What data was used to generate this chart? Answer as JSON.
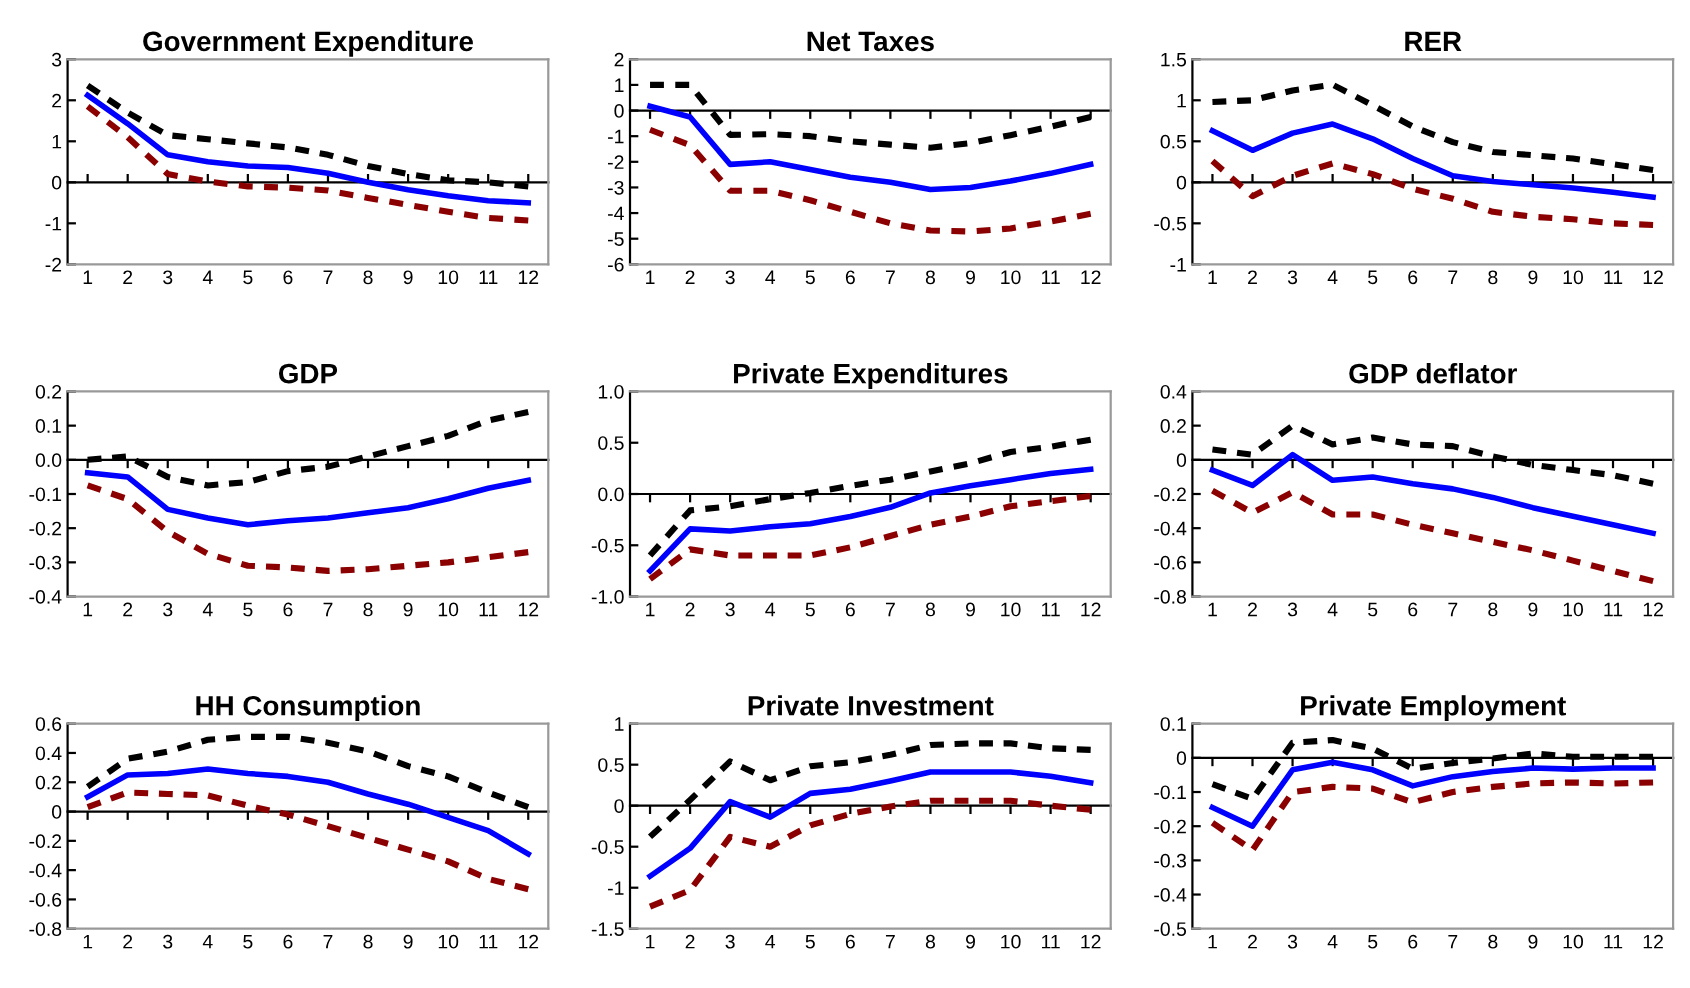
{
  "chart_data": [
    {
      "type": "line",
      "title": "Government Expenditure",
      "categories": [
        "1",
        "2",
        "3",
        "4",
        "5",
        "6",
        "7",
        "8",
        "9",
        "10",
        "11",
        "12"
      ],
      "ylim": [
        -2,
        3
      ],
      "yticks": [
        -2,
        -1,
        0,
        1,
        2,
        3
      ],
      "legend": false,
      "marker": "none",
      "series": [
        {
          "color": "#000000",
          "line_style": "dashed",
          "values": [
            2.36,
            1.7,
            1.15,
            1.05,
            0.95,
            0.85,
            0.67,
            0.4,
            0.2,
            0.05,
            0,
            -0.1
          ]
        },
        {
          "color": "#0000ff",
          "line_style": "solid",
          "values": [
            2.12,
            1.43,
            0.67,
            0.5,
            0.4,
            0.36,
            0.22,
            0,
            -0.18,
            -0.33,
            -0.45,
            -0.5
          ]
        },
        {
          "color": "#8b0000",
          "line_style": "dashed",
          "values": [
            1.85,
            1.1,
            0.2,
            0.02,
            -0.1,
            -0.13,
            -0.2,
            -0.38,
            -0.55,
            -0.72,
            -0.87,
            -0.93
          ]
        }
      ]
    },
    {
      "type": "line",
      "title": "Net Taxes",
      "categories": [
        "1",
        "2",
        "3",
        "4",
        "5",
        "6",
        "7",
        "8",
        "9",
        "10",
        "11",
        "12"
      ],
      "ylim": [
        -6,
        2
      ],
      "yticks": [
        -6,
        -5,
        -4,
        -3,
        -2,
        -1,
        0,
        1,
        2
      ],
      "legend": false,
      "marker": "none",
      "series": [
        {
          "color": "#000000",
          "line_style": "dashed",
          "values": [
            1.0,
            1.0,
            -0.95,
            -0.92,
            -1.0,
            -1.2,
            -1.33,
            -1.45,
            -1.27,
            -0.96,
            -0.63,
            -0.25
          ]
        },
        {
          "color": "#0000ff",
          "line_style": "solid",
          "values": [
            0.17,
            -0.25,
            -2.1,
            -2.0,
            -2.3,
            -2.6,
            -2.8,
            -3.08,
            -3.0,
            -2.75,
            -2.45,
            -2.1
          ]
        },
        {
          "color": "#8b0000",
          "line_style": "dashed",
          "values": [
            -0.75,
            -1.35,
            -3.13,
            -3.13,
            -3.5,
            -3.95,
            -4.4,
            -4.68,
            -4.72,
            -4.6,
            -4.33,
            -4.03
          ]
        }
      ]
    },
    {
      "type": "line",
      "title": "RER",
      "categories": [
        "1",
        "2",
        "3",
        "4",
        "5",
        "6",
        "7",
        "8",
        "9",
        "10",
        "11",
        "12"
      ],
      "ylim": [
        -1,
        1.5
      ],
      "yticks": [
        -1,
        -0.5,
        0,
        0.5,
        1,
        1.5
      ],
      "legend": false,
      "marker": "none",
      "series": [
        {
          "color": "#000000",
          "line_style": "dashed",
          "values": [
            0.98,
            1.0,
            1.12,
            1.19,
            0.94,
            0.68,
            0.49,
            0.37,
            0.33,
            0.29,
            0.22,
            0.15
          ]
        },
        {
          "color": "#0000ff",
          "line_style": "solid",
          "values": [
            0.63,
            0.39,
            0.6,
            0.71,
            0.53,
            0.29,
            0.08,
            0.01,
            -0.03,
            -0.07,
            -0.12,
            -0.18
          ]
        },
        {
          "color": "#8b0000",
          "line_style": "dashed",
          "values": [
            0.26,
            -0.17,
            0.08,
            0.23,
            0.1,
            -0.08,
            -0.2,
            -0.36,
            -0.42,
            -0.45,
            -0.5,
            -0.52
          ]
        }
      ]
    },
    {
      "type": "line",
      "title": "GDP",
      "categories": [
        "1",
        "2",
        "3",
        "4",
        "5",
        "6",
        "7",
        "8",
        "9",
        "10",
        "11",
        "12"
      ],
      "ylim": [
        -0.4,
        0.2
      ],
      "yticks": [
        -0.4,
        -0.3,
        -0.2,
        -0.1,
        {
          "value": 0,
          "label": "0.0"
        },
        0.1,
        0.2
      ],
      "legend": false,
      "marker": "none",
      "series": [
        {
          "color": "#000000",
          "line_style": "dashed",
          "values": [
            0,
            0.01,
            -0.05,
            -0.075,
            -0.065,
            -0.033,
            -0.02,
            0.01,
            0.04,
            0.07,
            0.115,
            0.14
          ]
        },
        {
          "color": "#0000ff",
          "line_style": "solid",
          "values": [
            -0.038,
            -0.05,
            -0.145,
            -0.17,
            -0.19,
            -0.178,
            -0.17,
            -0.155,
            -0.14,
            -0.114,
            -0.083,
            -0.06
          ]
        },
        {
          "color": "#8b0000",
          "line_style": "dashed",
          "values": [
            -0.075,
            -0.115,
            -0.21,
            -0.275,
            -0.31,
            -0.315,
            -0.325,
            -0.32,
            -0.31,
            -0.3,
            -0.285,
            -0.27
          ]
        }
      ]
    },
    {
      "type": "line",
      "title": "Private Expenditures",
      "categories": [
        "1",
        "2",
        "3",
        "4",
        "5",
        "6",
        "7",
        "8",
        "9",
        "10",
        "11",
        "12"
      ],
      "ylim": [
        -1,
        1
      ],
      "yticks": [
        {
          "value": -1,
          "label": "-1.0"
        },
        -0.5,
        {
          "value": 0,
          "label": "0.0"
        },
        0.5,
        {
          "value": 1,
          "label": "1.0"
        }
      ],
      "legend": false,
      "marker": "none",
      "series": [
        {
          "color": "#000000",
          "line_style": "dashed",
          "values": [
            -0.6,
            -0.16,
            -0.12,
            -0.05,
            0.01,
            0.08,
            0.14,
            0.22,
            0.3,
            0.41,
            0.46,
            0.53
          ]
        },
        {
          "color": "#0000ff",
          "line_style": "solid",
          "values": [
            -0.75,
            -0.34,
            -0.36,
            -0.32,
            -0.29,
            -0.22,
            -0.13,
            0.01,
            0.08,
            0.14,
            0.2,
            0.24
          ]
        },
        {
          "color": "#8b0000",
          "line_style": "dashed",
          "values": [
            -0.83,
            -0.54,
            -0.6,
            -0.6,
            -0.6,
            -0.52,
            -0.41,
            -0.3,
            -0.22,
            -0.12,
            -0.07,
            -0.02
          ]
        }
      ]
    },
    {
      "type": "line",
      "title": "GDP deflator",
      "categories": [
        "1",
        "2",
        "3",
        "4",
        "5",
        "6",
        "7",
        "8",
        "9",
        "10",
        "11",
        "12"
      ],
      "ylim": [
        -0.8,
        0.4
      ],
      "yticks": [
        -0.8,
        -0.6,
        -0.4,
        -0.2,
        0,
        0.2,
        0.4
      ],
      "legend": false,
      "marker": "none",
      "series": [
        {
          "color": "#000000",
          "line_style": "dashed",
          "values": [
            0.06,
            0.03,
            0.2,
            0.09,
            0.13,
            0.09,
            0.08,
            0.02,
            -0.03,
            -0.06,
            -0.09,
            -0.14
          ]
        },
        {
          "color": "#0000ff",
          "line_style": "solid",
          "values": [
            -0.06,
            -0.15,
            0.03,
            -0.12,
            -0.1,
            -0.14,
            -0.17,
            -0.22,
            -0.28,
            -0.33,
            -0.38,
            -0.43
          ]
        },
        {
          "color": "#8b0000",
          "line_style": "dashed",
          "values": [
            -0.18,
            -0.31,
            -0.19,
            -0.32,
            -0.32,
            -0.38,
            -0.43,
            -0.48,
            -0.53,
            -0.59,
            -0.65,
            -0.71
          ]
        }
      ]
    },
    {
      "type": "line",
      "title": "HH Consumption",
      "categories": [
        "1",
        "2",
        "3",
        "4",
        "5",
        "6",
        "7",
        "8",
        "9",
        "10",
        "11",
        "12"
      ],
      "ylim": [
        -0.8,
        0.6
      ],
      "yticks": [
        -0.8,
        -0.6,
        -0.4,
        -0.2,
        0,
        0.2,
        0.4,
        0.6
      ],
      "legend": false,
      "marker": "none",
      "series": [
        {
          "color": "#000000",
          "line_style": "dashed",
          "values": [
            0.17,
            0.36,
            0.41,
            0.49,
            0.51,
            0.51,
            0.47,
            0.41,
            0.31,
            0.24,
            0.13,
            0.03
          ]
        },
        {
          "color": "#0000ff",
          "line_style": "solid",
          "values": [
            0.1,
            0.25,
            0.26,
            0.29,
            0.26,
            0.24,
            0.2,
            0.12,
            0.05,
            -0.04,
            -0.13,
            -0.29
          ]
        },
        {
          "color": "#8b0000",
          "line_style": "dashed",
          "values": [
            0.03,
            0.13,
            0.12,
            0.11,
            0.04,
            -0.02,
            -0.1,
            -0.18,
            -0.26,
            -0.34,
            -0.46,
            -0.53
          ]
        }
      ]
    },
    {
      "type": "line",
      "title": "Private Investment",
      "categories": [
        "1",
        "2",
        "3",
        "4",
        "5",
        "6",
        "7",
        "8",
        "9",
        "10",
        "11",
        "12"
      ],
      "ylim": [
        -1.5,
        1
      ],
      "yticks": [
        -1.5,
        -1,
        -0.5,
        0,
        0.5,
        1
      ],
      "legend": false,
      "marker": "none",
      "series": [
        {
          "color": "#000000",
          "line_style": "dashed",
          "values": [
            -0.38,
            0.07,
            0.54,
            0.31,
            0.48,
            0.53,
            0.62,
            0.74,
            0.76,
            0.76,
            0.7,
            0.68
          ]
        },
        {
          "color": "#0000ff",
          "line_style": "solid",
          "values": [
            -0.86,
            -0.52,
            0.05,
            -0.14,
            0.15,
            0.2,
            0.3,
            0.41,
            0.41,
            0.41,
            0.36,
            0.28
          ]
        },
        {
          "color": "#8b0000",
          "line_style": "dashed",
          "values": [
            -1.23,
            -1.03,
            -0.38,
            -0.5,
            -0.24,
            -0.1,
            -0.01,
            0.06,
            0.06,
            0.06,
            0,
            -0.05
          ]
        }
      ]
    },
    {
      "type": "line",
      "title": "Private Employment",
      "categories": [
        "1",
        "2",
        "3",
        "4",
        "5",
        "6",
        "7",
        "8",
        "9",
        "10",
        "11",
        "12"
      ],
      "ylim": [
        -0.5,
        0.1
      ],
      "yticks": [
        -0.5,
        -0.4,
        -0.3,
        -0.2,
        -0.1,
        0,
        0.1
      ],
      "legend": false,
      "marker": "none",
      "series": [
        {
          "color": "#000000",
          "line_style": "dashed",
          "values": [
            -0.077,
            -0.12,
            0.044,
            0.052,
            0.027,
            -0.032,
            -0.015,
            -0.002,
            0.013,
            0.003,
            0.003,
            0.003
          ]
        },
        {
          "color": "#0000ff",
          "line_style": "solid",
          "values": [
            -0.145,
            -0.2,
            -0.035,
            -0.013,
            -0.035,
            -0.082,
            -0.055,
            -0.04,
            -0.03,
            -0.033,
            -0.03,
            -0.03
          ]
        },
        {
          "color": "#8b0000",
          "line_style": "dashed",
          "values": [
            -0.19,
            -0.27,
            -0.1,
            -0.085,
            -0.09,
            -0.13,
            -0.1,
            -0.085,
            -0.075,
            -0.072,
            -0.075,
            -0.072
          ]
        }
      ]
    }
  ]
}
